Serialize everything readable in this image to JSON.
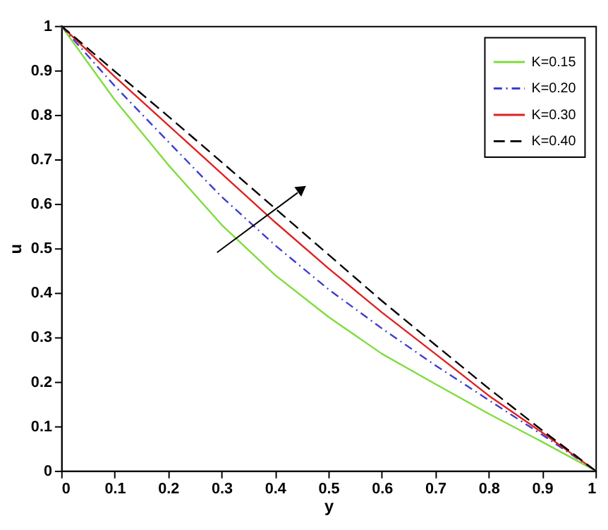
{
  "chart_data": {
    "type": "line",
    "xlabel": "y",
    "ylabel": "u",
    "x": [
      0,
      0.1,
      0.2,
      0.3,
      0.4,
      0.5,
      0.6,
      0.7,
      0.8,
      0.9,
      1
    ],
    "series": [
      {
        "name": "K=0.15",
        "color": "#7fdc3c",
        "line_style": "solid",
        "values": [
          1,
          0.834,
          0.688,
          0.553,
          0.44,
          0.346,
          0.263,
          0.195,
          0.128,
          0.065,
          0
        ]
      },
      {
        "name": "K=0.20",
        "color": "#3c3cd2",
        "line_style": "dashdot",
        "values": [
          1,
          0.865,
          0.74,
          0.616,
          0.507,
          0.408,
          0.32,
          0.237,
          0.159,
          0.081,
          0
        ]
      },
      {
        "name": "K=0.30",
        "color": "#e02020",
        "line_style": "solid",
        "values": [
          1,
          0.886,
          0.777,
          0.668,
          0.559,
          0.455,
          0.356,
          0.263,
          0.169,
          0.086,
          0
        ]
      },
      {
        "name": "K=0.40",
        "color": "#000000",
        "line_style": "dashed",
        "values": [
          1,
          0.898,
          0.797,
          0.694,
          0.59,
          0.486,
          0.382,
          0.283,
          0.185,
          0.091,
          0
        ]
      }
    ],
    "xlim": [
      0,
      1
    ],
    "ylim": [
      0,
      1
    ],
    "xticks": [
      0,
      0.1,
      0.2,
      0.3,
      0.4,
      0.5,
      0.6,
      0.7,
      0.8,
      0.9,
      1
    ],
    "yticks": [
      0,
      0.1,
      0.2,
      0.3,
      0.4,
      0.5,
      0.6,
      0.7,
      0.8,
      0.9,
      1
    ],
    "legend": "top right",
    "grid": false,
    "marker": "none"
  }
}
